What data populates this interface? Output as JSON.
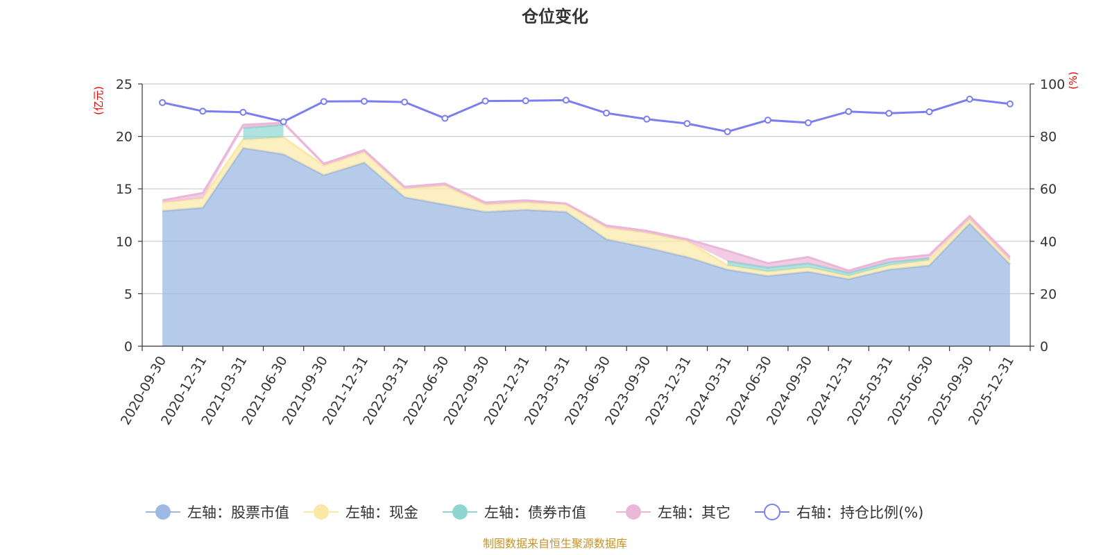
{
  "chart_data": {
    "type": "area",
    "title": "仓位变化",
    "source": "制图数据来自恒生聚源数据库",
    "left_axis": {
      "unit": "(亿元)",
      "range": [
        0,
        25
      ],
      "ticks": [
        0,
        5,
        10,
        15,
        20,
        25
      ]
    },
    "right_axis": {
      "unit": "(%)",
      "range": [
        0,
        100
      ],
      "ticks": [
        0,
        20,
        40,
        60,
        80,
        100
      ]
    },
    "categories": [
      "2020-09-30",
      "2020-12-31",
      "2021-03-31",
      "2021-06-30",
      "2021-09-30",
      "2021-12-31",
      "2022-03-31",
      "2022-06-30",
      "2022-09-30",
      "2022-12-31",
      "2023-03-31",
      "2023-06-30",
      "2023-09-30",
      "2023-12-31",
      "2024-03-31",
      "2024-06-30",
      "2024-09-30",
      "2024-12-31",
      "2025-03-31",
      "2025-06-30",
      "2025-09-30",
      "2025-12-31"
    ],
    "series": [
      {
        "name": "左轴：股票市值",
        "axis": "left",
        "color": "#9db8e1",
        "values": [
          12.9,
          13.2,
          18.9,
          18.3,
          16.3,
          17.5,
          14.2,
          13.5,
          12.8,
          13.0,
          12.8,
          10.2,
          9.4,
          8.5,
          7.3,
          6.7,
          7.1,
          6.4,
          7.3,
          7.7,
          11.7,
          7.8
        ]
      },
      {
        "name": "左轴：现金",
        "axis": "left",
        "color": "#fbe8a6",
        "values": [
          0.8,
          0.9,
          0.8,
          1.6,
          0.9,
          1.0,
          0.8,
          1.8,
          0.7,
          0.7,
          0.7,
          1.1,
          1.4,
          1.5,
          0.4,
          0.4,
          0.4,
          0.3,
          0.4,
          0.5,
          0.4,
          0.4
        ]
      },
      {
        "name": "左轴：债券市值",
        "axis": "left",
        "color": "#8fd6d3",
        "values": [
          0,
          0,
          1.1,
          1.2,
          0,
          0,
          0,
          0,
          0,
          0,
          0,
          0,
          0,
          0,
          0.4,
          0.4,
          0.4,
          0.3,
          0.3,
          0.2,
          0,
          0
        ]
      },
      {
        "name": "左轴：其它",
        "axis": "left",
        "color": "#ebb7d9",
        "values": [
          0.2,
          0.5,
          0.3,
          0.2,
          0.2,
          0.2,
          0.2,
          0.2,
          0.2,
          0.2,
          0.1,
          0.2,
          0.2,
          0.2,
          1.0,
          0.4,
          0.6,
          0.2,
          0.3,
          0.3,
          0.3,
          0.3
        ]
      },
      {
        "name": "右轴：持仓比例(%)",
        "axis": "right",
        "color": "#7b7ef0",
        "type": "line",
        "values": [
          92.9,
          89.6,
          89.2,
          85.6,
          93.3,
          93.4,
          93.1,
          86.9,
          93.5,
          93.6,
          93.8,
          88.9,
          86.6,
          84.9,
          81.8,
          86.2,
          85.2,
          89.5,
          88.8,
          89.4,
          94.2,
          92.4
        ]
      }
    ]
  }
}
